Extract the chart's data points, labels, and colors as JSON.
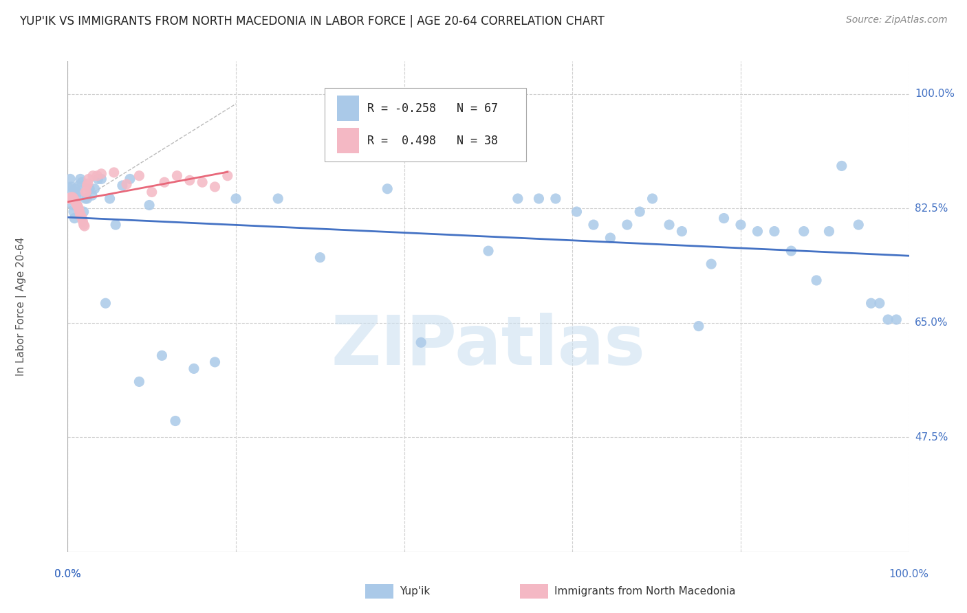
{
  "title": "YUP'IK VS IMMIGRANTS FROM NORTH MACEDONIA IN LABOR FORCE | AGE 20-64 CORRELATION CHART",
  "source": "Source: ZipAtlas.com",
  "ylabel": "In Labor Force | Age 20-64",
  "ytick_labels": [
    "100.0%",
    "82.5%",
    "65.0%",
    "47.5%"
  ],
  "ytick_values": [
    1.0,
    0.825,
    0.65,
    0.475
  ],
  "xlim": [
    0.0,
    1.0
  ],
  "ylim": [
    0.3,
    1.05
  ],
  "blue_color": "#aac9e8",
  "blue_line_color": "#4472c4",
  "pink_color": "#f4b8c4",
  "pink_line_color": "#e8687a",
  "diag_line_color": "#cccccc",
  "legend_R_blue": "-0.258",
  "legend_N_blue": "67",
  "legend_R_pink": "0.498",
  "legend_N_pink": "38",
  "legend_yupik": "Yup'ik",
  "legend_immigrants": "Immigrants from North Macedonia",
  "watermark": "ZIPatlas",
  "blue_scatter_x": [
    0.002,
    0.003,
    0.004,
    0.005,
    0.006,
    0.007,
    0.008,
    0.009,
    0.01,
    0.011,
    0.012,
    0.013,
    0.015,
    0.017,
    0.019,
    0.021,
    0.023,
    0.026,
    0.029,
    0.032,
    0.036,
    0.04,
    0.045,
    0.05,
    0.057,
    0.065,
    0.074,
    0.085,
    0.097,
    0.112,
    0.128,
    0.15,
    0.175,
    0.2,
    0.25,
    0.3,
    0.38,
    0.42,
    0.46,
    0.5,
    0.535,
    0.56,
    0.58,
    0.605,
    0.625,
    0.645,
    0.665,
    0.68,
    0.695,
    0.715,
    0.73,
    0.75,
    0.765,
    0.78,
    0.8,
    0.82,
    0.84,
    0.86,
    0.875,
    0.89,
    0.905,
    0.92,
    0.94,
    0.955,
    0.965,
    0.975,
    0.985
  ],
  "blue_scatter_y": [
    0.855,
    0.87,
    0.858,
    0.84,
    0.83,
    0.82,
    0.81,
    0.855,
    0.845,
    0.83,
    0.85,
    0.86,
    0.87,
    0.865,
    0.82,
    0.84,
    0.84,
    0.855,
    0.845,
    0.855,
    0.87,
    0.87,
    0.68,
    0.84,
    0.8,
    0.86,
    0.87,
    0.56,
    0.83,
    0.6,
    0.5,
    0.58,
    0.59,
    0.84,
    0.84,
    0.75,
    0.855,
    0.62,
    0.91,
    0.76,
    0.84,
    0.84,
    0.84,
    0.82,
    0.8,
    0.78,
    0.8,
    0.82,
    0.84,
    0.8,
    0.79,
    0.645,
    0.74,
    0.81,
    0.8,
    0.79,
    0.79,
    0.76,
    0.79,
    0.715,
    0.79,
    0.89,
    0.8,
    0.68,
    0.68,
    0.655,
    0.655
  ],
  "pink_scatter_x": [
    0.001,
    0.002,
    0.003,
    0.004,
    0.005,
    0.006,
    0.007,
    0.008,
    0.009,
    0.01,
    0.011,
    0.012,
    0.013,
    0.014,
    0.015,
    0.016,
    0.017,
    0.018,
    0.019,
    0.02,
    0.021,
    0.022,
    0.023,
    0.024,
    0.025,
    0.03,
    0.035,
    0.04,
    0.055,
    0.07,
    0.085,
    0.1,
    0.115,
    0.13,
    0.145,
    0.16,
    0.175,
    0.19
  ],
  "pink_scatter_y": [
    0.84,
    0.84,
    0.84,
    0.842,
    0.842,
    0.842,
    0.84,
    0.838,
    0.835,
    0.833,
    0.83,
    0.828,
    0.825,
    0.82,
    0.815,
    0.813,
    0.81,
    0.805,
    0.8,
    0.798,
    0.85,
    0.85,
    0.86,
    0.863,
    0.87,
    0.875,
    0.875,
    0.878,
    0.88,
    0.862,
    0.875,
    0.85,
    0.865,
    0.875,
    0.868,
    0.865,
    0.858,
    0.875
  ],
  "background_color": "#ffffff",
  "grid_color": "#d0d0d0",
  "title_color": "#222222",
  "axis_label_color": "#4472c4",
  "ylabel_color": "#555555",
  "watermark_color": "#cce0f0",
  "watermark_alpha": 0.6
}
